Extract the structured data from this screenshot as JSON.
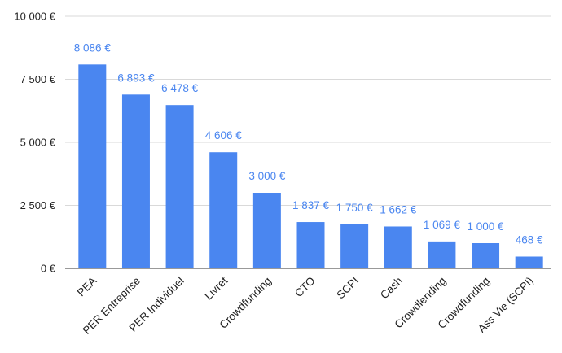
{
  "chart_data": {
    "type": "bar",
    "categories": [
      "PEA",
      "PER Entreprise",
      "PER Individuel",
      "Livret",
      "Crowdfunding",
      "CTO",
      "SCPI",
      "Cash",
      "Crowdlending",
      "Crowdfunding",
      "Ass Vie (SCPI)"
    ],
    "values": [
      8086,
      6893,
      6478,
      4606,
      3000,
      1837,
      1750,
      1662,
      1069,
      1000,
      468
    ],
    "data_labels": [
      "8 086 €",
      "6 893 €",
      "6 478 €",
      "4 606 €",
      "3 000 €",
      "1 837 €",
      "1 750 €",
      "1 662 €",
      "1 069 €",
      "1 000 €",
      "468 €"
    ],
    "yticks": [
      0,
      2500,
      5000,
      7500,
      10000
    ],
    "ytick_labels": [
      "0 €",
      "2 500 €",
      "5 000 €",
      "7 500 €",
      "10 000 €"
    ],
    "ylim": [
      0,
      10000
    ],
    "title": "",
    "xlabel": "",
    "ylabel": "",
    "grid": true,
    "legend": "none",
    "bar_color": "#4a86f0",
    "label_color": "#4a86f0"
  }
}
